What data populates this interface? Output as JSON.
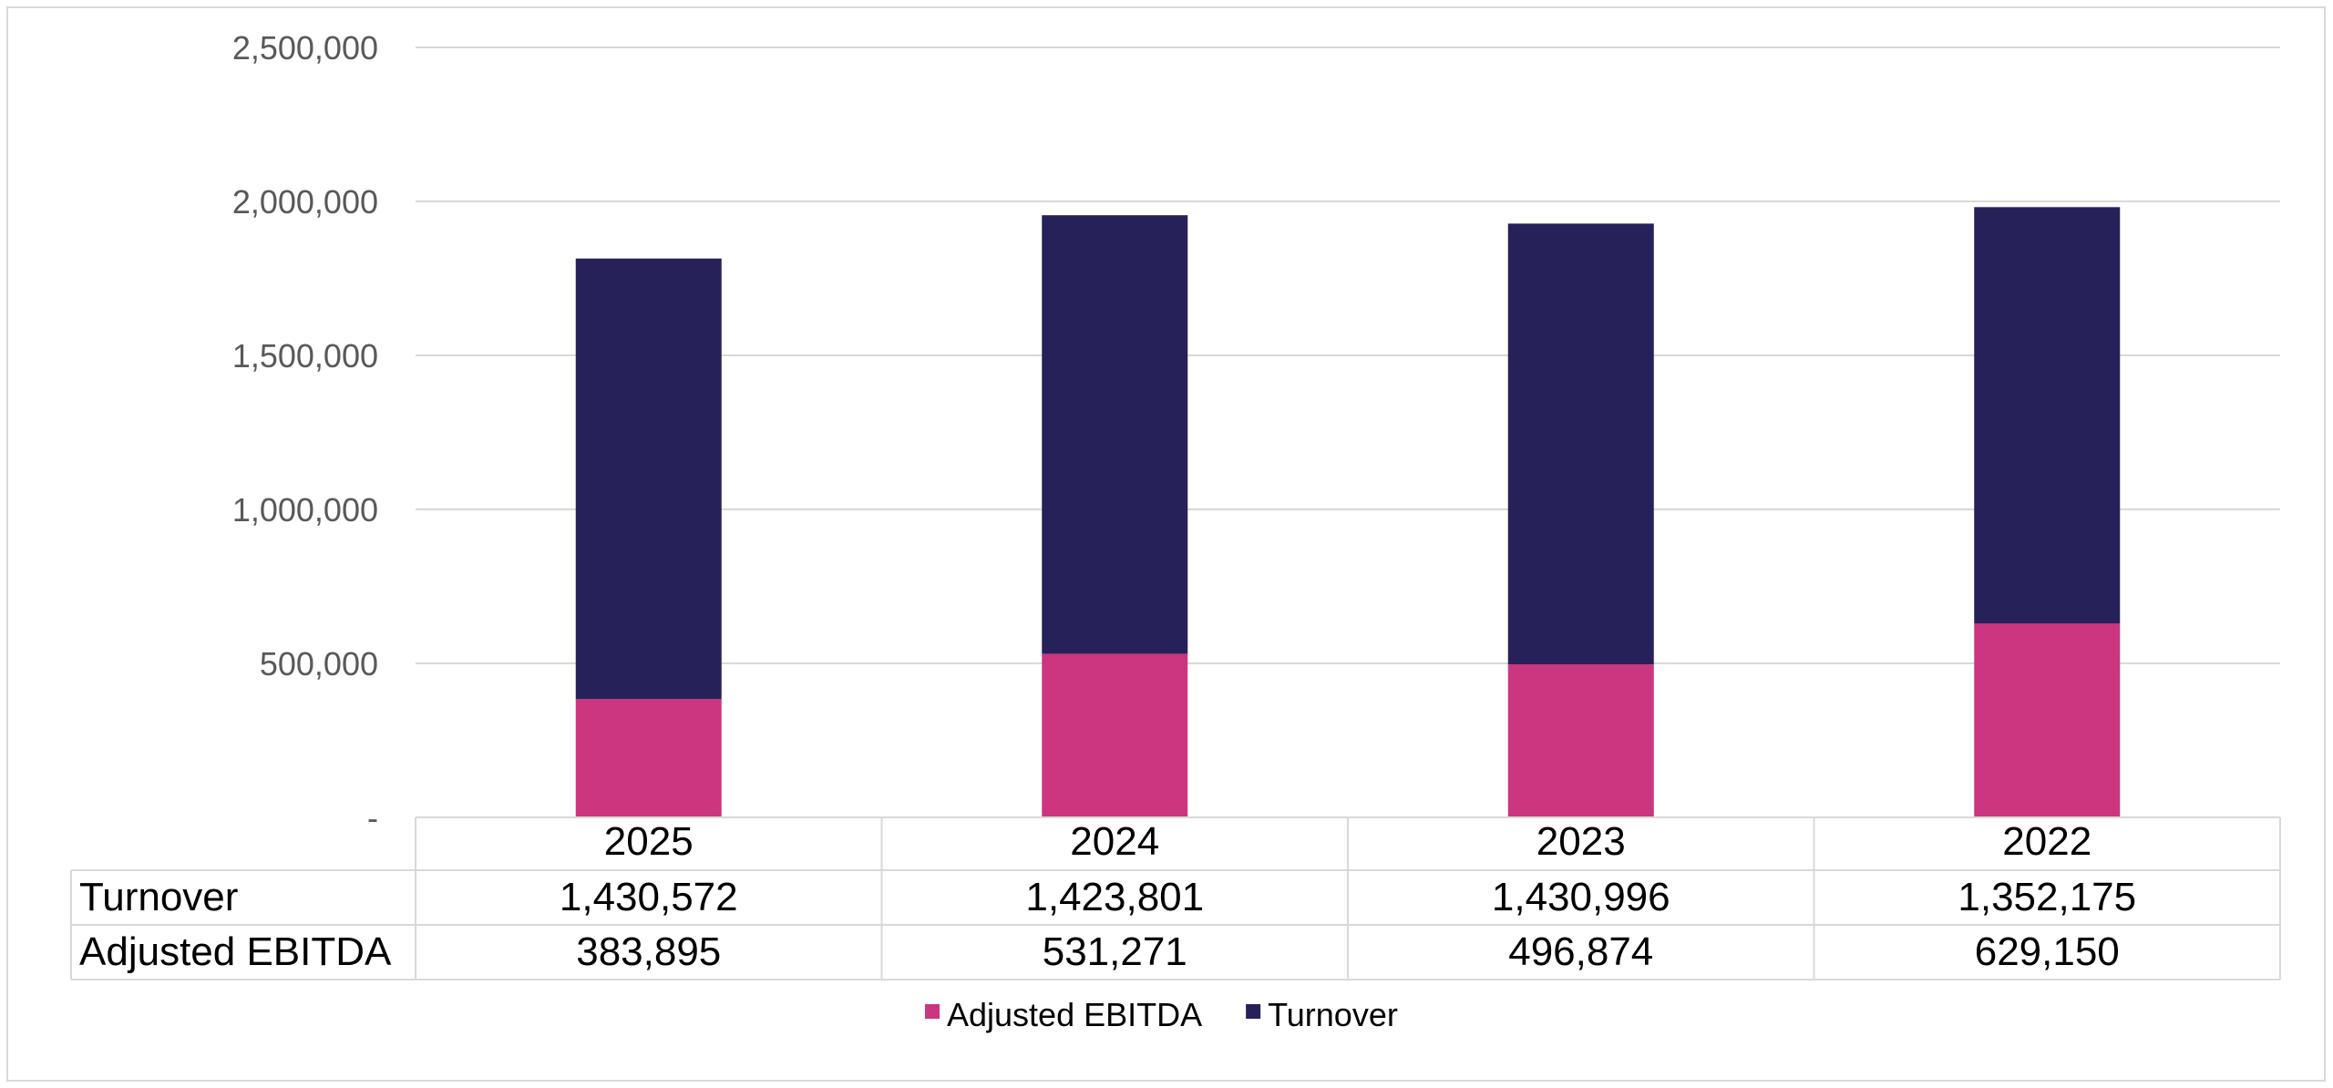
{
  "chart_data": {
    "type": "bar",
    "stacked": true,
    "categories": [
      "2025",
      "2024",
      "2023",
      "2022"
    ],
    "series": [
      {
        "name": "Adjusted EBITDA",
        "color": "#CC3580",
        "values": [
          383895,
          531271,
          496874,
          629150
        ],
        "display": [
          "383,895",
          "531,271",
          "496,874",
          "629,150"
        ]
      },
      {
        "name": "Turnover",
        "color": "#262159",
        "values": [
          1430572,
          1423801,
          1430996,
          1352175
        ],
        "display": [
          "1,430,572",
          "1,423,801",
          "1,430,996",
          "1,352,175"
        ]
      }
    ],
    "table_rows": [
      "Turnover",
      "Adjusted EBITDA"
    ],
    "y_ticks": [
      "-",
      "500,000",
      "1,000,000",
      "1,500,000",
      "2,000,000",
      "2,500,000"
    ],
    "ylim": [
      0,
      2500000
    ],
    "grid": true,
    "legend_position": "bottom",
    "legend": [
      "Adjusted EBITDA",
      "Turnover"
    ],
    "title": "",
    "xlabel": "",
    "ylabel": ""
  }
}
